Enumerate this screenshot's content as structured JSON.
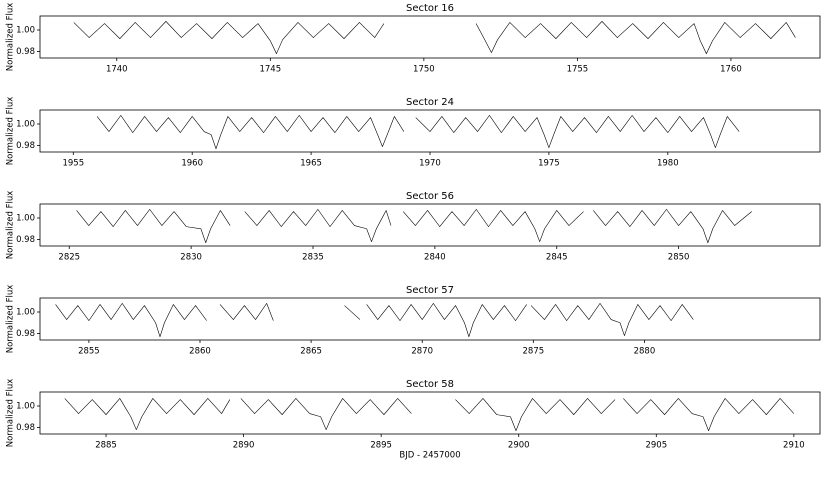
{
  "chart_data": [
    {
      "type": "line",
      "title": "Sector 16",
      "ylabel": "Normalized Flux",
      "color": "#000000",
      "xlim": [
        1737.5,
        1762.9
      ],
      "ylim": [
        0.974,
        1.013
      ],
      "xticks": [
        1740,
        1745,
        1750,
        1755,
        1760
      ],
      "yticks": [
        0.98,
        {
          "value": 1.0,
          "label": "1.00"
        }
      ],
      "x": [
        1738.6,
        1739.1,
        1739.6,
        1740.1,
        1740.6,
        1741.1,
        1741.6,
        1742.1,
        1742.6,
        1743.1,
        1743.6,
        1744.1,
        1744.6,
        1745.0,
        1745.2,
        1745.4,
        1745.9,
        1746.4,
        1746.9,
        1747.4,
        1747.9,
        1748.4,
        1748.7,
        1750,
        1751.7,
        1752.0,
        1752.2,
        1752.4,
        1752.8,
        1753.3,
        1753.8,
        1754.3,
        1754.8,
        1755.3,
        1755.8,
        1756.3,
        1756.8,
        1757.3,
        1757.8,
        1758.3,
        1758.8,
        1759.0,
        1759.2,
        1759.4,
        1759.8,
        1760.3,
        1760.8,
        1761.3,
        1761.8,
        1762.1
      ],
      "values": [
        1.007,
        0.993,
        1.006,
        0.992,
        1.007,
        0.993,
        1.008,
        0.993,
        1.006,
        0.992,
        1.007,
        0.993,
        1.006,
        0.99,
        0.978,
        0.991,
        1.007,
        0.993,
        1.006,
        0.992,
        1.007,
        0.993,
        1.006,
        null,
        1.006,
        0.99,
        0.979,
        0.991,
        1.007,
        0.993,
        1.006,
        0.992,
        1.007,
        0.993,
        1.008,
        0.993,
        1.006,
        0.992,
        1.007,
        0.993,
        1.006,
        0.99,
        0.978,
        0.99,
        1.007,
        0.993,
        1.006,
        0.992,
        1.007,
        0.993
      ]
    },
    {
      "type": "line",
      "title": "Sector 24",
      "ylabel": "Normalized Flux",
      "color": "#000000",
      "xlim": [
        1953.6,
        1986.4
      ],
      "ylim": [
        0.974,
        1.013
      ],
      "xticks": [
        1955,
        1960,
        1965,
        1970,
        1975,
        1980
      ],
      "yticks": [
        0.98,
        {
          "value": 1.0,
          "label": "1.00"
        }
      ],
      "x": [
        1956.0,
        1956.5,
        1957.0,
        1957.5,
        1958.0,
        1958.5,
        1959.0,
        1959.5,
        1960.0,
        1960.5,
        1960.8,
        1961.0,
        1961.2,
        1961.5,
        1962.0,
        1962.5,
        1963.0,
        1963.5,
        1964.0,
        1964.5,
        1965.0,
        1965.5,
        1966.0,
        1966.5,
        1967.0,
        1967.5,
        1967.8,
        1968.0,
        1968.2,
        1968.5,
        1968.9,
        1969.2,
        1969.4,
        1970.0,
        1970.5,
        1971.0,
        1971.5,
        1972.0,
        1972.5,
        1973.0,
        1973.5,
        1974.0,
        1974.5,
        1974.8,
        1975.0,
        1975.2,
        1975.5,
        1976.0,
        1976.5,
        1977.0,
        1977.5,
        1978.0,
        1978.5,
        1979.0,
        1979.5,
        1980.0,
        1980.5,
        1981.0,
        1981.5,
        1981.8,
        1982.0,
        1982.2,
        1982.5,
        1983.0
      ],
      "values": [
        1.007,
        0.993,
        1.008,
        0.992,
        1.007,
        0.993,
        1.006,
        0.992,
        1.007,
        0.993,
        0.99,
        0.977,
        0.99,
        1.007,
        0.993,
        1.006,
        0.992,
        1.007,
        0.993,
        1.008,
        0.993,
        1.006,
        0.992,
        1.007,
        0.993,
        1.006,
        0.99,
        0.979,
        0.99,
        1.007,
        0.993,
        null,
        1.006,
        0.993,
        1.007,
        0.992,
        1.006,
        0.993,
        1.008,
        0.992,
        1.007,
        0.993,
        1.006,
        0.99,
        0.978,
        0.99,
        1.007,
        0.993,
        1.006,
        0.992,
        1.007,
        0.993,
        1.008,
        0.993,
        1.006,
        0.992,
        1.007,
        0.993,
        1.006,
        0.99,
        0.978,
        0.99,
        1.007,
        0.993
      ]
    },
    {
      "type": "line",
      "title": "Sector 56",
      "ylabel": "Normalized Flux",
      "color": "#000000",
      "xlim": [
        2823.8,
        2855.8
      ],
      "ylim": [
        0.974,
        1.013
      ],
      "xticks": [
        2825,
        2830,
        2835,
        2840,
        2845,
        2850
      ],
      "yticks": [
        0.98,
        {
          "value": 1.0,
          "label": "1.00"
        }
      ],
      "x": [
        2825.3,
        2825.8,
        2826.3,
        2826.8,
        2827.3,
        2827.8,
        2828.3,
        2828.8,
        2829.3,
        2829.8,
        2830.4,
        2830.6,
        2830.8,
        2831.2,
        2831.6,
        2831.9,
        2832.2,
        2832.7,
        2833.2,
        2833.7,
        2834.2,
        2834.7,
        2835.2,
        2835.7,
        2836.2,
        2836.7,
        2837.2,
        2837.4,
        2837.6,
        2838.0,
        2838.2,
        2838.45,
        2838.7,
        2839.2,
        2839.7,
        2840.2,
        2840.7,
        2841.2,
        2841.7,
        2842.2,
        2842.7,
        2843.2,
        2843.7,
        2844.1,
        2844.3,
        2844.5,
        2845.0,
        2845.5,
        2846.1,
        2846.3,
        2846.5,
        2847.0,
        2847.5,
        2848.0,
        2848.5,
        2849.0,
        2849.5,
        2850.0,
        2850.5,
        2851.0,
        2851.2,
        2851.4,
        2851.8,
        2852.3,
        2853.0
      ],
      "values": [
        1.007,
        0.993,
        1.006,
        0.992,
        1.007,
        0.993,
        1.008,
        0.993,
        1.006,
        0.992,
        0.99,
        0.977,
        0.99,
        1.007,
        0.993,
        null,
        1.006,
        0.993,
        1.007,
        0.992,
        1.006,
        0.993,
        1.008,
        0.992,
        1.007,
        0.993,
        0.99,
        0.978,
        0.99,
        1.007,
        0.993,
        null,
        1.006,
        0.993,
        1.007,
        0.992,
        1.006,
        0.993,
        1.008,
        0.992,
        1.007,
        0.993,
        1.006,
        0.99,
        0.978,
        0.99,
        1.007,
        0.993,
        1.006,
        null,
        1.007,
        0.993,
        1.006,
        0.992,
        1.007,
        0.993,
        1.008,
        0.993,
        1.006,
        0.99,
        0.977,
        0.99,
        1.007,
        0.993,
        1.006
      ]
    },
    {
      "type": "line",
      "title": "Sector 57",
      "ylabel": "Normalized Flux",
      "color": "#000000",
      "xlim": [
        2852.8,
        2887.9
      ],
      "ylim": [
        0.974,
        1.013
      ],
      "xticks": [
        2855,
        2860,
        2865,
        2870,
        2875,
        2880
      ],
      "yticks": [
        0.98,
        {
          "value": 1.0,
          "label": "1.00"
        }
      ],
      "x": [
        2853.5,
        2854.0,
        2854.5,
        2855.0,
        2855.5,
        2856.0,
        2856.5,
        2857.0,
        2857.5,
        2858.0,
        2858.2,
        2858.4,
        2858.8,
        2859.3,
        2859.8,
        2860.3,
        2860.6,
        2860.9,
        2861.5,
        2862.0,
        2862.5,
        2863.0,
        2863.3,
        2865,
        2866.5,
        2867.2,
        2867.35,
        2867.5,
        2868.0,
        2868.5,
        2869.0,
        2869.5,
        2870.0,
        2870.5,
        2871.0,
        2871.5,
        2871.9,
        2872.1,
        2872.3,
        2872.7,
        2873.2,
        2873.7,
        2874.2,
        2874.7,
        2874.8,
        2874.9,
        2875.5,
        2876.0,
        2876.5,
        2877.0,
        2877.5,
        2878.0,
        2878.5,
        2878.9,
        2879.1,
        2879.3,
        2879.7,
        2880.2,
        2880.7,
        2881.2,
        2881.7,
        2882.2
      ],
      "values": [
        1.007,
        0.993,
        1.006,
        0.992,
        1.007,
        0.993,
        1.008,
        0.993,
        1.006,
        0.99,
        0.977,
        0.99,
        1.007,
        0.993,
        1.006,
        0.992,
        null,
        1.007,
        0.993,
        1.006,
        0.993,
        1.008,
        0.992,
        null,
        1.006,
        0.993,
        null,
        1.007,
        0.993,
        1.006,
        0.992,
        1.007,
        0.993,
        1.008,
        0.993,
        1.006,
        0.99,
        0.977,
        0.99,
        1.007,
        0.993,
        1.006,
        0.992,
        1.007,
        null,
        1.006,
        0.993,
        1.007,
        0.992,
        1.006,
        0.993,
        1.008,
        0.993,
        0.99,
        0.978,
        0.99,
        1.007,
        0.993,
        1.006,
        0.992,
        1.007,
        0.993
      ]
    },
    {
      "type": "line",
      "title": "Sector 58",
      "ylabel": "Normalized Flux",
      "xlabel": "BJD - 2457000",
      "color": "#000000",
      "xlim": [
        2882.6,
        2910.95
      ],
      "ylim": [
        0.974,
        1.013
      ],
      "xticks": [
        2885,
        2890,
        2895,
        2900,
        2905,
        2910
      ],
      "yticks": [
        0.98,
        {
          "value": 1.0,
          "label": "1.00"
        }
      ],
      "x": [
        2883.5,
        2884.0,
        2884.5,
        2885.0,
        2885.5,
        2885.9,
        2886.1,
        2886.3,
        2886.7,
        2887.2,
        2887.7,
        2888.2,
        2888.7,
        2889.2,
        2889.5,
        2889.7,
        2889.9,
        2890.4,
        2890.9,
        2891.4,
        2891.9,
        2892.4,
        2892.8,
        2893.0,
        2893.2,
        2893.6,
        2894.1,
        2894.6,
        2895.1,
        2895.6,
        2896.1,
        2897,
        2897.7,
        2898.2,
        2898.7,
        2899.2,
        2899.7,
        2899.9,
        2900.1,
        2900.5,
        2901.0,
        2901.5,
        2902.0,
        2902.5,
        2903.0,
        2903.5,
        2903.65,
        2903.8,
        2904.3,
        2904.8,
        2905.3,
        2905.8,
        2906.3,
        2906.7,
        2906.9,
        2907.1,
        2907.5,
        2908.0,
        2908.5,
        2909.0,
        2909.5,
        2910.0
      ],
      "values": [
        1.007,
        0.993,
        1.006,
        0.992,
        1.007,
        0.99,
        0.978,
        0.99,
        1.007,
        0.993,
        1.006,
        0.992,
        1.007,
        0.993,
        1.006,
        null,
        1.007,
        0.993,
        1.006,
        0.992,
        1.007,
        0.993,
        0.99,
        0.978,
        0.99,
        1.007,
        0.993,
        1.006,
        0.992,
        1.007,
        0.993,
        null,
        1.006,
        0.993,
        1.007,
        0.992,
        0.99,
        0.977,
        0.99,
        1.007,
        0.993,
        1.006,
        0.992,
        1.007,
        0.993,
        1.006,
        null,
        1.007,
        0.993,
        1.006,
        0.992,
        1.007,
        0.993,
        0.99,
        0.977,
        0.99,
        1.007,
        0.993,
        1.006,
        0.992,
        1.007,
        0.993
      ]
    }
  ]
}
